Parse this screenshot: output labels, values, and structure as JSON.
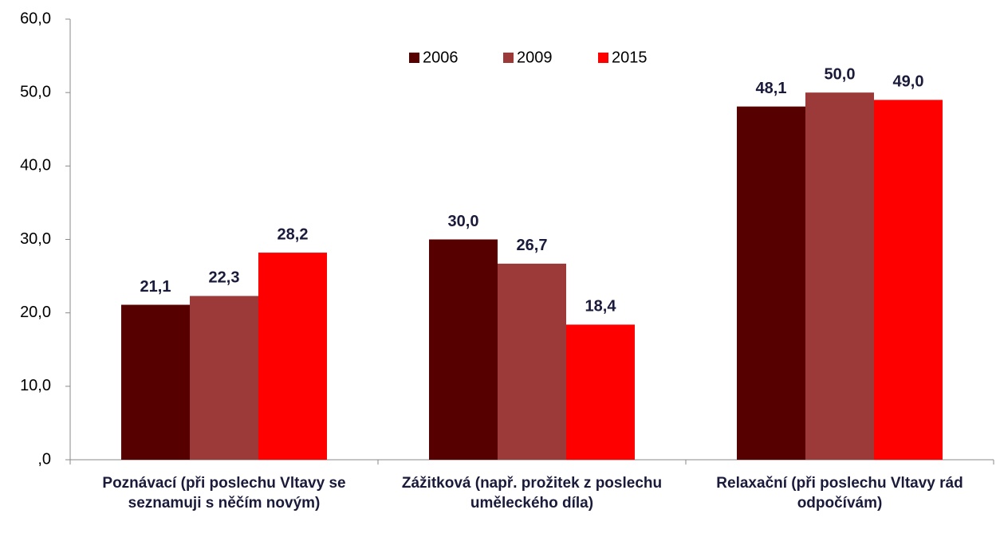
{
  "chart_data": {
    "type": "bar",
    "categories": [
      "Poznávací (při poslechu Vltavy se seznamuji s něčím novým)",
      "Zážitková (např. prožitek z poslechu uměleckého díla)",
      "Relaxační (při poslechu Vltavy rád odpočívám)"
    ],
    "series": [
      {
        "name": "2006",
        "color": "#560000",
        "values": [
          21.1,
          30.0,
          48.1
        ],
        "value_labels": [
          "21,1",
          "30,0",
          "48,1"
        ]
      },
      {
        "name": "2009",
        "color": "#9b3a38",
        "values": [
          22.3,
          26.7,
          50.0
        ],
        "value_labels": [
          "22,3",
          "26,7",
          "50,0"
        ]
      },
      {
        "name": "2015",
        "color": "#ff0000",
        "values": [
          28.2,
          18.4,
          49.0
        ],
        "value_labels": [
          "28,2",
          "18,4",
          "49,0"
        ]
      }
    ],
    "ylim": [
      0,
      60
    ],
    "yticks": [
      {
        "value": 0,
        "label": ",0"
      },
      {
        "value": 10,
        "label": "10,0"
      },
      {
        "value": 20,
        "label": "20,0"
      },
      {
        "value": 30,
        "label": "30,0"
      },
      {
        "value": 40,
        "label": "40,0"
      },
      {
        "value": 50,
        "label": "50,0"
      },
      {
        "value": 60,
        "label": "60,0"
      }
    ],
    "grid": false,
    "legend": "top"
  }
}
